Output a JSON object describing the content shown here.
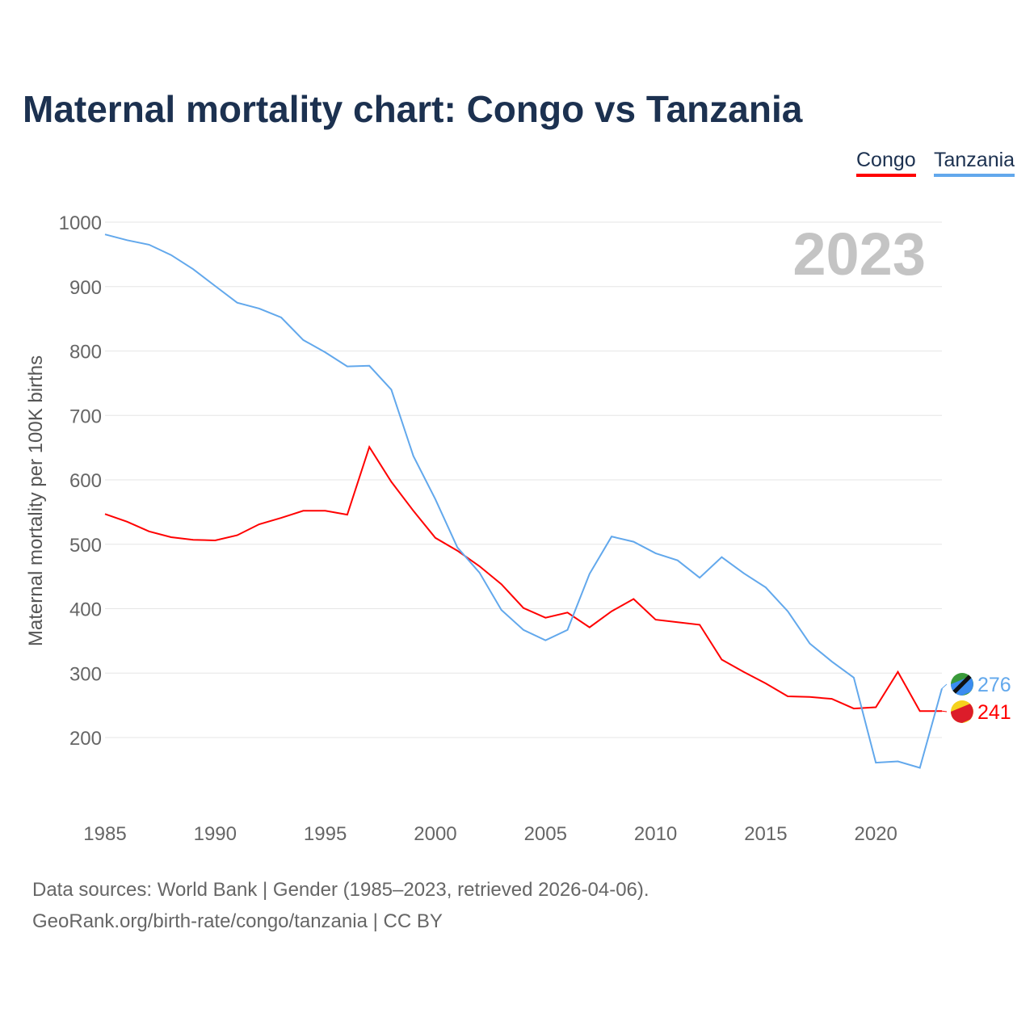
{
  "chart_data": {
    "type": "line",
    "title": "Maternal mortality chart: Congo vs Tanzania",
    "ylabel": "Maternal mortality per 100K births",
    "xlabel": "",
    "year_label": "2023",
    "ylim": [
      100,
      1000
    ],
    "xlim": [
      1985,
      2023
    ],
    "y_ticks": [
      200,
      300,
      400,
      500,
      600,
      700,
      800,
      900,
      1000
    ],
    "x_ticks": [
      1985,
      1990,
      1995,
      2000,
      2005,
      2010,
      2015,
      2020
    ],
    "grid": true,
    "legend_position": "top-right",
    "x": [
      1985,
      1986,
      1987,
      1988,
      1989,
      1990,
      1991,
      1992,
      1993,
      1994,
      1995,
      1996,
      1997,
      1998,
      1999,
      2000,
      2001,
      2002,
      2003,
      2004,
      2005,
      2006,
      2007,
      2008,
      2009,
      2010,
      2011,
      2012,
      2013,
      2014,
      2015,
      2016,
      2017,
      2018,
      2019,
      2020,
      2021,
      2022,
      2023
    ],
    "series": [
      {
        "name": "Congo",
        "color": "#ff0000",
        "end_label": "241",
        "values": [
          547,
          535,
          520,
          511,
          507,
          506,
          514,
          531,
          541,
          552,
          552,
          546,
          651,
          597,
          552,
          510,
          490,
          466,
          438,
          401,
          386,
          394,
          371,
          396,
          415,
          383,
          379,
          375,
          321,
          302,
          284,
          264,
          263,
          260,
          245,
          247,
          302,
          241,
          241
        ]
      },
      {
        "name": "Tanzania",
        "color": "#62a8ec",
        "end_label": "276",
        "values": [
          981,
          972,
          965,
          949,
          927,
          901,
          875,
          866,
          852,
          817,
          798,
          776,
          777,
          740,
          637,
          570,
          495,
          456,
          398,
          367,
          351,
          367,
          454,
          512,
          504,
          486,
          475,
          448,
          480,
          455,
          433,
          396,
          346,
          318,
          293,
          161,
          163,
          153,
          276
        ]
      }
    ]
  },
  "footer": {
    "line1": "Data sources: World Bank | Gender (1985–2023, retrieved 2026-04-06).",
    "line2": "GeoRank.org/birth-rate/congo/tanzania | CC BY"
  }
}
